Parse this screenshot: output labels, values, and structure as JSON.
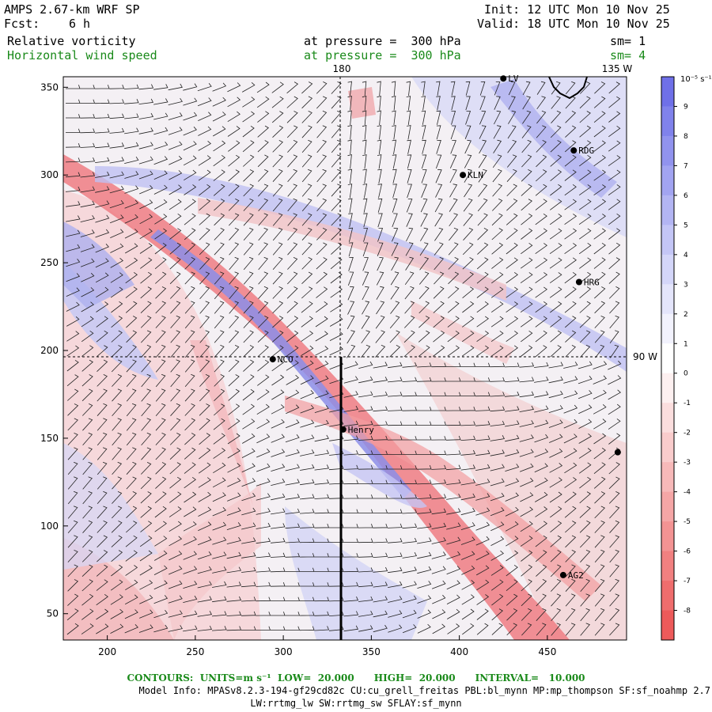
{
  "header": {
    "model": "AMPS 2.67-km WRF SP",
    "fcst_label": "Fcst:",
    "fcst_value": "6 h",
    "init": "Init: 12 UTC Mon 10 Nov 25",
    "valid": "Valid: 18 UTC Mon 10 Nov 25",
    "field1": "Relative vorticity",
    "field1_level": "at pressure =  300 hPa",
    "field1_sm": "sm= 1",
    "field2": "Horizontal wind speed",
    "field2_level": "at pressure =  300 hPa",
    "field2_sm": "sm= 4"
  },
  "map": {
    "x_ticks": [
      "200",
      "250",
      "300",
      "350",
      "400",
      "450"
    ],
    "y_ticks": [
      "350",
      "300",
      "250",
      "200",
      "150",
      "100",
      "50"
    ],
    "lon_labels": {
      "top_180": "180",
      "top_135w": "135 W",
      "right_90w": "90 W"
    },
    "stations": [
      {
        "name": "LV",
        "x": 425,
        "y": 355
      },
      {
        "name": "RDG",
        "x": 465,
        "y": 314
      },
      {
        "name": "KLN",
        "x": 402,
        "y": 300
      },
      {
        "name": "HRG",
        "x": 468,
        "y": 239
      },
      {
        "name": "NCO",
        "x": 294,
        "y": 195
      },
      {
        "name": "Henry",
        "x": 334,
        "y": 155
      },
      {
        "name": "AG2",
        "x": 459,
        "y": 72
      },
      {
        "name": "",
        "x": 490,
        "y": 142
      }
    ]
  },
  "colorbar": {
    "unit": "10⁻⁵ s⁻¹",
    "labels": [
      "9",
      "8",
      "7",
      "6",
      "5",
      "4",
      "3",
      "2",
      "1",
      "0",
      "-1",
      "-2",
      "-3",
      "-4",
      "-5",
      "-6",
      "-7",
      "-8"
    ],
    "colors": [
      "#6f70e8",
      "#8082eb",
      "#9193ee",
      "#a2a4f1",
      "#b3b5f3",
      "#c4c6f6",
      "#d4d6f9",
      "#e4e5fb",
      "#f2f2fd",
      "#ffffff",
      "#fdf0f0",
      "#fbdede",
      "#f9cccc",
      "#f7b9b9",
      "#f5a6a6",
      "#f39393",
      "#f18080",
      "#ef6d6d",
      "#ed5a5a"
    ]
  },
  "footer": {
    "contours": "CONTOURS:  UNITS=m s⁻¹  LOW=  20.000      HIGH=  20.000      INTERVAL=   10.000",
    "model_info": "Model Info: MPASv8.2.3-194-gf29cd82c CU:cu_grell_freitas PBL:bl_mynn MP:mp_thompson SF:sf_noahmp 2.7",
    "model_info2": "LW:rrtmg_lw SW:rrtmg_sw SFLAY:sf_mynn"
  }
}
